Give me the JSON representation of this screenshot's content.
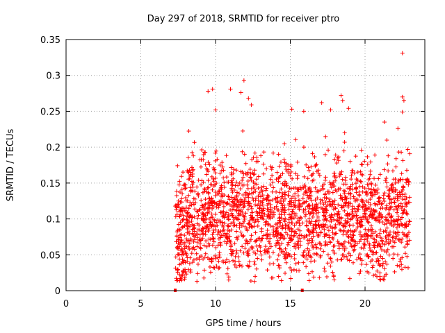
{
  "chart_data": {
    "type": "scatter",
    "title": "Day 297 of 2018, SRMTID for receiver ptro",
    "xlabel": "GPS time / hours",
    "ylabel": "SRMTID / TECUs",
    "xlim": [
      0,
      24
    ],
    "ylim": [
      0,
      0.35
    ],
    "xticks": [
      "0",
      "5",
      "10",
      "15",
      "20"
    ],
    "yticks": [
      "0",
      "0.05",
      "0.1",
      "0.15",
      "0.2",
      "0.25",
      "0.3",
      "0.35"
    ],
    "grid": true,
    "marker": "+",
    "color": "#ff0000",
    "point_count_estimate": 2200,
    "data_note": "Dense cloud of points between about 7.3 h and 23.0 h; most values 0.02–0.20 TECU, a few outliers up to 0.33.",
    "outliers": [
      {
        "x": 9.5,
        "y": 0.278
      },
      {
        "x": 9.8,
        "y": 0.281
      },
      {
        "x": 10.0,
        "y": 0.252
      },
      {
        "x": 11.0,
        "y": 0.281
      },
      {
        "x": 11.7,
        "y": 0.276
      },
      {
        "x": 11.9,
        "y": 0.293
      },
      {
        "x": 12.2,
        "y": 0.268
      },
      {
        "x": 12.4,
        "y": 0.259
      },
      {
        "x": 15.1,
        "y": 0.253
      },
      {
        "x": 15.9,
        "y": 0.25
      },
      {
        "x": 17.1,
        "y": 0.262
      },
      {
        "x": 17.7,
        "y": 0.252
      },
      {
        "x": 18.4,
        "y": 0.272
      },
      {
        "x": 18.5,
        "y": 0.265
      },
      {
        "x": 18.9,
        "y": 0.254
      },
      {
        "x": 22.5,
        "y": 0.331
      },
      {
        "x": 22.5,
        "y": 0.27
      },
      {
        "x": 22.6,
        "y": 0.265
      },
      {
        "x": 22.5,
        "y": 0.249
      },
      {
        "x": 21.3,
        "y": 0.235
      },
      {
        "x": 22.2,
        "y": 0.226
      }
    ],
    "zero_markers": [
      {
        "x": 7.3,
        "y": 0
      },
      {
        "x": 15.8,
        "y": 0
      }
    ]
  }
}
